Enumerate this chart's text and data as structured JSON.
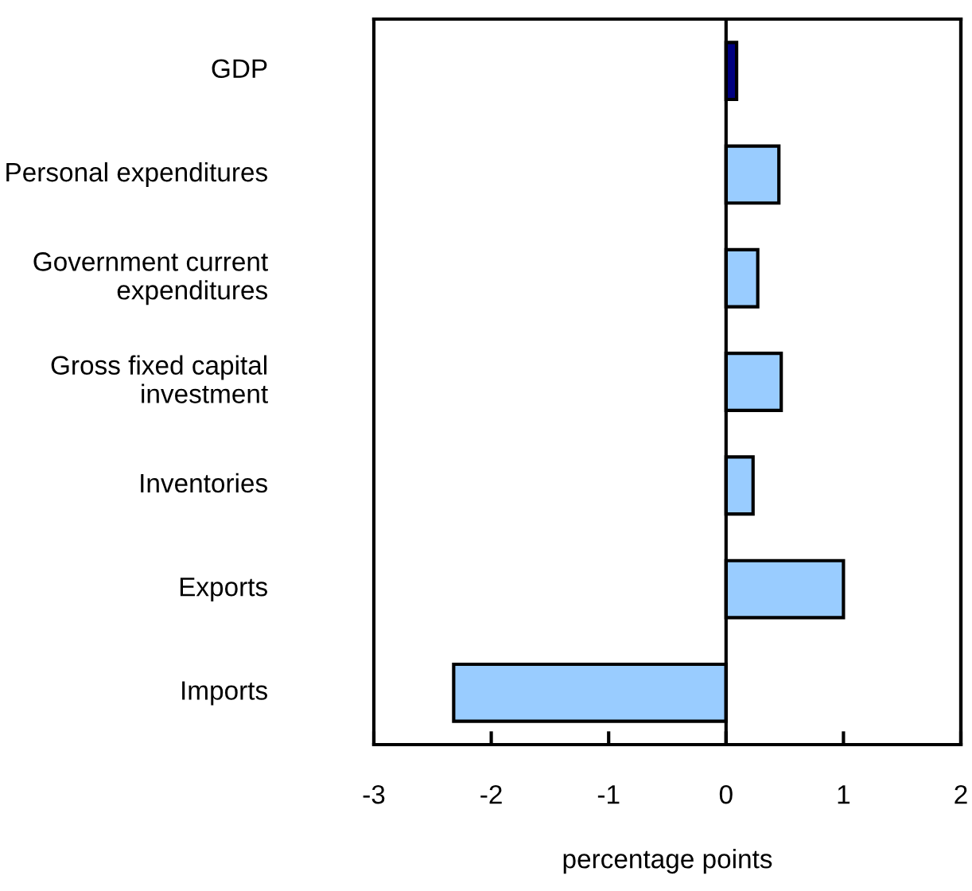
{
  "chart_data": {
    "type": "bar",
    "orientation": "horizontal",
    "categories": [
      "GDP",
      "Personal expenditures",
      "Government current\nexpenditures",
      "Gross fixed capital\ninvestment",
      "Inventories",
      "Exports",
      "Imports"
    ],
    "values": [
      0.09,
      0.45,
      0.27,
      0.47,
      0.23,
      1.0,
      -2.32
    ],
    "colors": [
      "#000080",
      "#99ccff",
      "#99ccff",
      "#99ccff",
      "#99ccff",
      "#99ccff",
      "#99ccff"
    ],
    "xlim": [
      -3,
      2
    ],
    "xticks": [
      -3,
      -2,
      -1,
      0,
      1,
      2
    ],
    "xlabel": "percentage points",
    "legend": false
  }
}
